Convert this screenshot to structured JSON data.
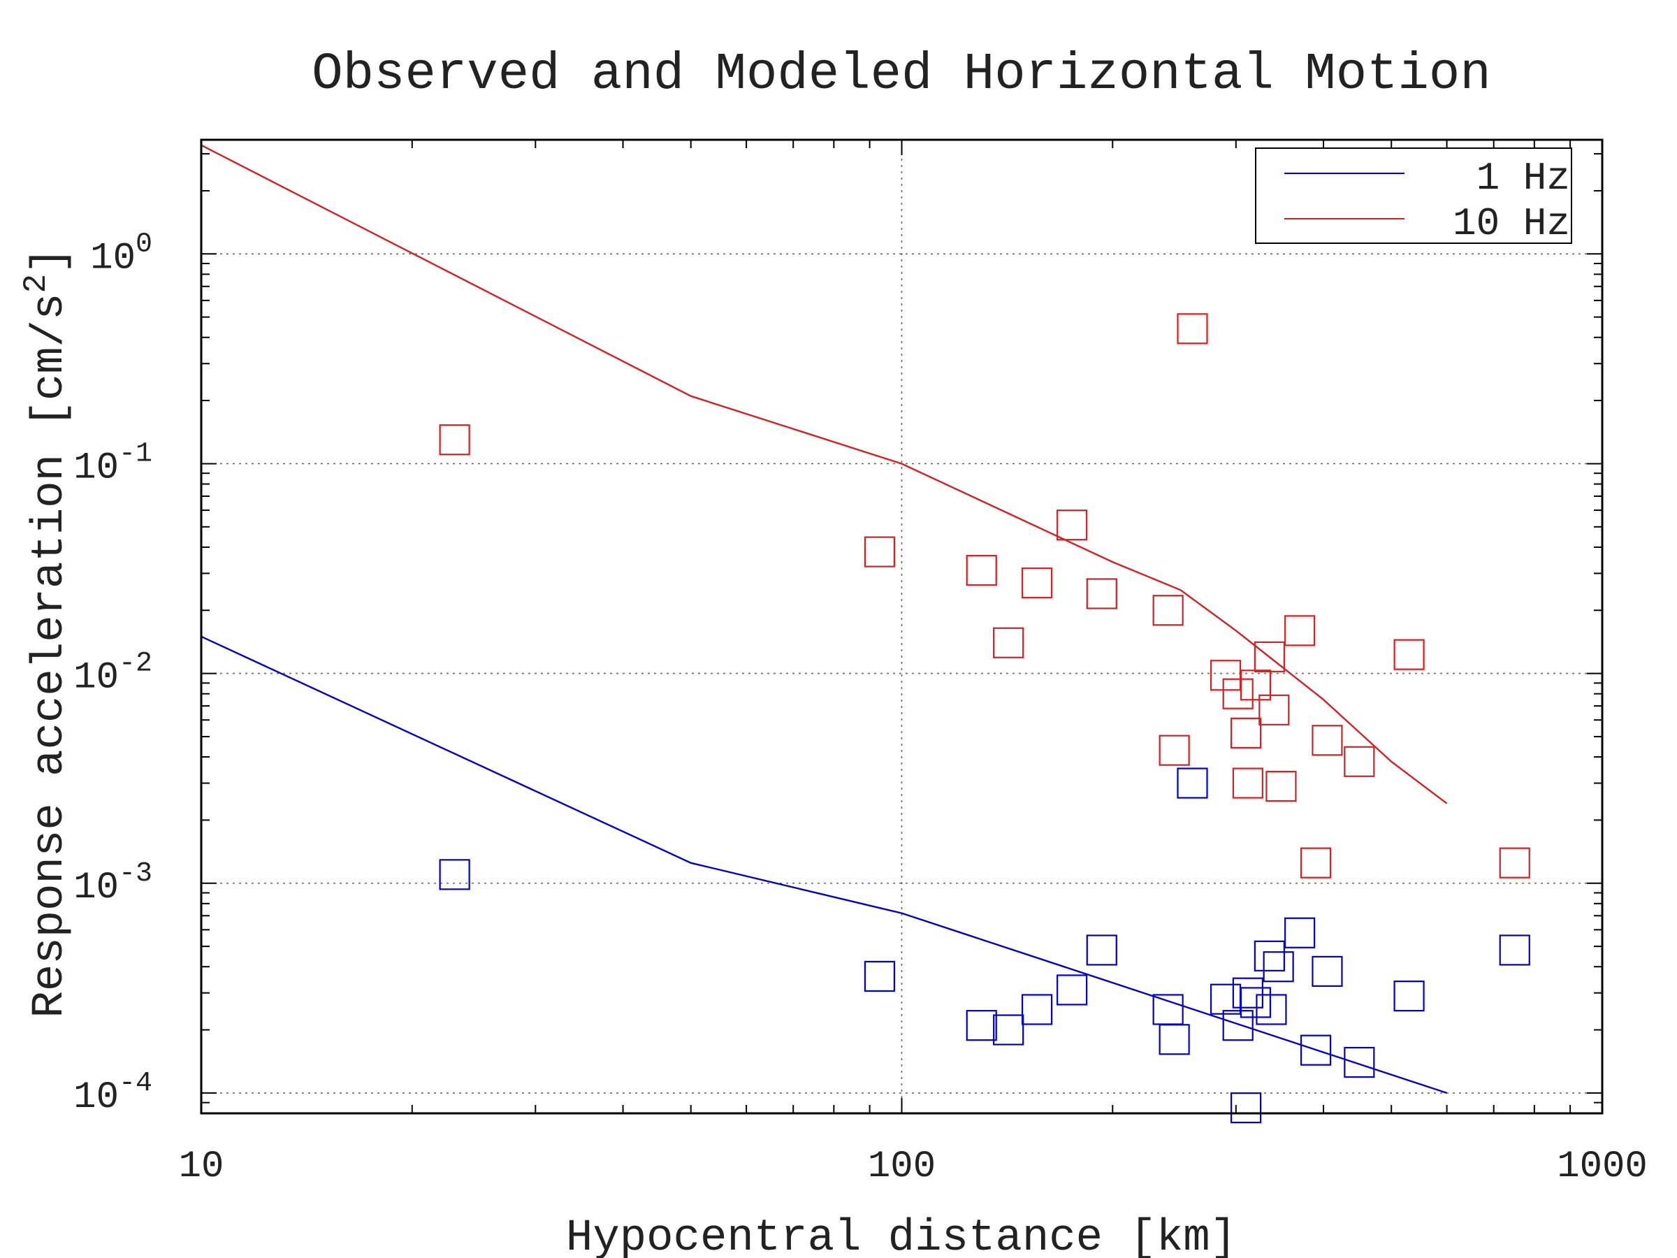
{
  "chart_data": {
    "type": "scatter",
    "title": "Observed and Modeled Horizontal Motion",
    "xlabel": "Hypocentral distance [km]",
    "ylabel": "Response acceleration [cm/s",
    "ylabel_sup": "2",
    "ylabel_end": "]",
    "x_scale": "log",
    "y_scale": "log",
    "xlim": [
      10,
      1000
    ],
    "ylim": [
      8e-05,
      3.5
    ],
    "grid": true,
    "legend_position": "top-right",
    "x_ticks": [
      {
        "value": 10,
        "label": "10"
      },
      {
        "value": 100,
        "label": "100"
      },
      {
        "value": 1000,
        "label": "1000"
      }
    ],
    "y_ticks": [
      {
        "value": 1,
        "base": "10",
        "exp": "0"
      },
      {
        "value": 0.1,
        "base": "10",
        "exp": "-1"
      },
      {
        "value": 0.01,
        "base": "10",
        "exp": "-2"
      },
      {
        "value": 0.001,
        "base": "10",
        "exp": "-3"
      },
      {
        "value": 0.0001,
        "base": "10",
        "exp": "-4"
      }
    ],
    "series": [
      {
        "name": "1 Hz",
        "color": "#0000c8",
        "model_line": {
          "x": [
            10,
            50,
            100,
            600
          ],
          "y": [
            0.015,
            0.00125,
            0.00072,
            0.0001
          ]
        },
        "observed": [
          [
            23,
            0.0011
          ],
          [
            93,
            0.00036
          ],
          [
            130,
            0.00021
          ],
          [
            142,
            0.0002
          ],
          [
            156,
            0.00025
          ],
          [
            175,
            0.00031
          ],
          [
            193,
            0.00048
          ],
          [
            240,
            0.00025
          ],
          [
            245,
            0.00018
          ],
          [
            260,
            0.003
          ],
          [
            290,
            0.00028
          ],
          [
            302,
            0.00021
          ],
          [
            310,
            8.5e-05
          ],
          [
            312,
            0.0003
          ],
          [
            320,
            0.00027
          ],
          [
            335,
            0.00045
          ],
          [
            337,
            0.00025
          ],
          [
            345,
            0.0004
          ],
          [
            370,
            0.00058
          ],
          [
            390,
            0.00016
          ],
          [
            405,
            0.00038
          ],
          [
            450,
            0.00014
          ],
          [
            530,
            0.00029
          ],
          [
            750,
            0.00048
          ]
        ]
      },
      {
        "name": "10 Hz",
        "color": "#d42020",
        "model_line": {
          "x": [
            10,
            50,
            100,
            200,
            250,
            300,
            400,
            500,
            600
          ],
          "y": [
            3.3,
            0.21,
            0.1,
            0.034,
            0.025,
            0.016,
            0.0075,
            0.0038,
            0.0024
          ]
        },
        "observed": [
          [
            23,
            0.13
          ],
          [
            93,
            0.038
          ],
          [
            130,
            0.031
          ],
          [
            142,
            0.014
          ],
          [
            156,
            0.027
          ],
          [
            175,
            0.051
          ],
          [
            193,
            0.024
          ],
          [
            240,
            0.02
          ],
          [
            245,
            0.0043
          ],
          [
            260,
            0.44
          ],
          [
            290,
            0.0098
          ],
          [
            302,
            0.008
          ],
          [
            310,
            0.0052
          ],
          [
            312,
            0.003
          ],
          [
            320,
            0.0088
          ],
          [
            335,
            0.012
          ],
          [
            340,
            0.0067
          ],
          [
            348,
            0.0029
          ],
          [
            370,
            0.016
          ],
          [
            390,
            0.00125
          ],
          [
            405,
            0.0048
          ],
          [
            450,
            0.0038
          ],
          [
            530,
            0.0123
          ],
          [
            750,
            0.00125
          ]
        ]
      }
    ]
  }
}
